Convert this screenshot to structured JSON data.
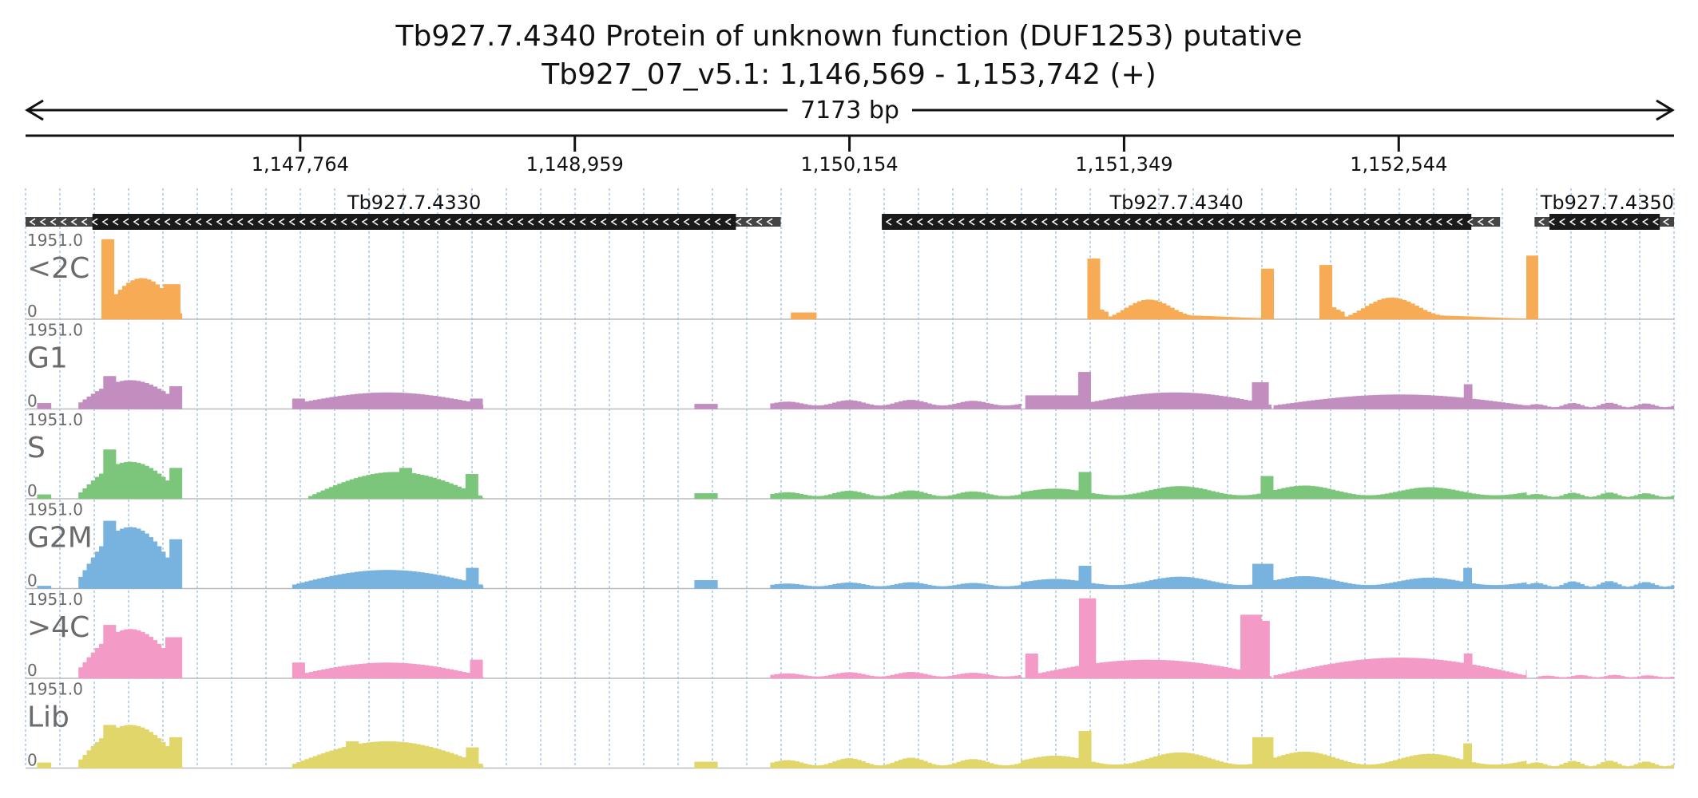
{
  "header": {
    "title": "Tb927.7.4340  Protein of unknown function (DUF1253)  putative",
    "location": "Tb927_07_v5.1: 1,146,569 - 1,153,742 (+)"
  },
  "chart_data": {
    "type": "area",
    "region": {
      "chromosome": "Tb927_07_v5.1",
      "start": 1146569,
      "end": 1153742,
      "span_label": "7173 bp"
    },
    "ruler_ticks": [
      {
        "pos": 1147764,
        "label": "1,147,764"
      },
      {
        "pos": 1148959,
        "label": "1,148,959"
      },
      {
        "pos": 1150154,
        "label": "1,150,154"
      },
      {
        "pos": 1151349,
        "label": "1,151,349"
      },
      {
        "pos": 1152544,
        "label": "1,152,544"
      }
    ],
    "genes": [
      {
        "name": "Tb927.7.4330",
        "strand": "-",
        "utr_start": 1146569,
        "start": 1146860,
        "end": 1149660,
        "utr_end": 1149855
      },
      {
        "name": "Tb927.7.4340",
        "strand": "-",
        "utr_start": 1150295,
        "start": 1150295,
        "end": 1152860,
        "utr_end": 1152985
      },
      {
        "name": "Tb927.7.4350",
        "strand": "-",
        "utr_start": 1153135,
        "start": 1153200,
        "end": 1153680,
        "utr_end": 1153742,
        "label_align": "right"
      }
    ],
    "y_max_label": "1951.0",
    "y_min_label": "0",
    "ylim": [
      0,
      1951
    ],
    "tracks": [
      {
        "name": "<2C",
        "color": "#f7ab55",
        "segments": [
          {
            "start": 1146900,
            "end": 1147250,
            "shape": "hump",
            "peak": 1000,
            "base": 150,
            "spikes": [
              [
                1146905,
                1146960,
                1951
              ],
              [
                1147170,
                1147250,
                850
              ]
            ]
          },
          {
            "start": 1149900,
            "end": 1150010,
            "shape": "flat",
            "peak": 160
          },
          {
            "start": 1151190,
            "end": 1152000,
            "shape": "saddle",
            "peak": 500,
            "base": 20,
            "spikes": [
              [
                1151190,
                1151245,
                1480
              ],
              [
                1151950,
                1152000,
                1230
              ]
            ]
          },
          {
            "start": 1152200,
            "end": 1153150,
            "shape": "saddle",
            "peak": 550,
            "base": 10,
            "spikes": [
              [
                1152200,
                1152250,
                1320
              ],
              [
                1153100,
                1153150,
                1550
              ]
            ]
          }
        ]
      },
      {
        "name": "G1",
        "color": "#c28ec0",
        "segments": [
          {
            "start": 1146620,
            "end": 1146680,
            "shape": "flat",
            "peak": 140
          },
          {
            "start": 1146800,
            "end": 1147250,
            "shape": "hump",
            "peak": 700,
            "base": 120,
            "spikes": [
              [
                1146910,
                1146960,
                800
              ],
              [
                1147200,
                1147250,
                550
              ]
            ]
          },
          {
            "start": 1147730,
            "end": 1148560,
            "shape": "hump",
            "peak": 400,
            "base": 110,
            "spikes": [
              [
                1147730,
                1147780,
                250
              ],
              [
                1148510,
                1148560,
                250
              ]
            ]
          },
          {
            "start": 1149480,
            "end": 1149580,
            "shape": "flat",
            "peak": 120
          },
          {
            "start": 1149810,
            "end": 1150900,
            "shape": "wavy",
            "peak": 220,
            "base": 80
          },
          {
            "start": 1150920,
            "end": 1151150,
            "shape": "flat",
            "peak": 330
          },
          {
            "start": 1151150,
            "end": 1151990,
            "shape": "hump",
            "peak": 400,
            "base": 100,
            "spikes": [
              [
                1151150,
                1151200,
                900
              ],
              [
                1151900,
                1151980,
                650
              ]
            ]
          },
          {
            "start": 1152000,
            "end": 1153100,
            "shape": "hump",
            "peak": 350,
            "base": 80,
            "spikes": [
              [
                1152820,
                1152870,
                600
              ]
            ]
          },
          {
            "start": 1153100,
            "end": 1153742,
            "shape": "wavy",
            "peak": 150,
            "base": 40
          }
        ]
      },
      {
        "name": "S",
        "color": "#7cc67c",
        "segments": [
          {
            "start": 1146620,
            "end": 1146680,
            "shape": "flat",
            "peak": 100
          },
          {
            "start": 1146800,
            "end": 1147250,
            "shape": "hump",
            "peak": 900,
            "base": 100,
            "spikes": [
              [
                1146910,
                1146960,
                1200
              ],
              [
                1147200,
                1147250,
                750
              ]
            ]
          },
          {
            "start": 1147800,
            "end": 1148560,
            "shape": "hump",
            "peak": 650,
            "base": 40,
            "spikes": [
              [
                1148200,
                1148250,
                750
              ],
              [
                1148490,
                1148540,
                600
              ]
            ]
          },
          {
            "start": 1149480,
            "end": 1149580,
            "shape": "flat",
            "peak": 130
          },
          {
            "start": 1149810,
            "end": 1150900,
            "shape": "wavy",
            "peak": 200,
            "base": 60
          },
          {
            "start": 1150900,
            "end": 1153100,
            "shape": "wavy",
            "peak": 320,
            "base": 80,
            "spikes": [
              [
                1151150,
                1151200,
                650
              ],
              [
                1151950,
                1151990,
                550
              ]
            ]
          },
          {
            "start": 1153100,
            "end": 1153742,
            "shape": "wavy",
            "peak": 150,
            "base": 40
          }
        ]
      },
      {
        "name": "G2M",
        "color": "#78b3e0",
        "segments": [
          {
            "start": 1146620,
            "end": 1146680,
            "shape": "flat",
            "peak": 60
          },
          {
            "start": 1146800,
            "end": 1147250,
            "shape": "hump",
            "peak": 1500,
            "base": 200,
            "spikes": [
              [
                1146910,
                1146960,
                1650
              ],
              [
                1147200,
                1147250,
                1200
              ]
            ]
          },
          {
            "start": 1147730,
            "end": 1148560,
            "shape": "hump",
            "peak": 450,
            "base": 80,
            "spikes": [
              [
                1148480,
                1148540,
                500
              ]
            ]
          },
          {
            "start": 1149480,
            "end": 1149580,
            "shape": "flat",
            "peak": 200
          },
          {
            "start": 1149810,
            "end": 1150900,
            "shape": "wavy",
            "peak": 150,
            "base": 50
          },
          {
            "start": 1150900,
            "end": 1153100,
            "shape": "wavy",
            "peak": 300,
            "base": 80,
            "spikes": [
              [
                1151150,
                1151200,
                550
              ],
              [
                1151900,
                1151990,
                600
              ],
              [
                1152820,
                1152870,
                500
              ]
            ]
          },
          {
            "start": 1153100,
            "end": 1153742,
            "shape": "wavy",
            "peak": 180,
            "base": 40
          }
        ]
      },
      {
        "name": ">4C",
        "color": "#f39ac6",
        "segments": [
          {
            "start": 1146800,
            "end": 1147250,
            "shape": "hump",
            "peak": 1200,
            "base": 200,
            "spikes": [
              [
                1146910,
                1146960,
                1300
              ],
              [
                1147170,
                1147250,
                1000
              ]
            ]
          },
          {
            "start": 1147730,
            "end": 1148560,
            "shape": "hump",
            "peak": 380,
            "base": 50,
            "spikes": [
              [
                1147730,
                1147780,
                380
              ],
              [
                1148510,
                1148560,
                450
              ]
            ]
          },
          {
            "start": 1149810,
            "end": 1150900,
            "shape": "wavy",
            "peak": 150,
            "base": 40
          },
          {
            "start": 1150920,
            "end": 1151990,
            "shape": "hump",
            "peak": 450,
            "base": 50,
            "spikes": [
              [
                1150920,
                1150970,
                600
              ],
              [
                1151160,
                1151220,
                1951
              ],
              [
                1151860,
                1151940,
                1550
              ],
              [
                1151940,
                1151990,
                1400
              ]
            ]
          },
          {
            "start": 1152000,
            "end": 1153100,
            "shape": "hump",
            "peak": 500,
            "base": 60,
            "spikes": [
              [
                1152820,
                1152870,
                600
              ],
              [
                1153100,
                1153150,
                200
              ]
            ]
          },
          {
            "start": 1153150,
            "end": 1153742,
            "shape": "wavy",
            "peak": 80,
            "base": 20
          }
        ]
      },
      {
        "name": "Lib",
        "color": "#e0d66a",
        "segments": [
          {
            "start": 1146620,
            "end": 1146680,
            "shape": "flat",
            "peak": 130
          },
          {
            "start": 1146800,
            "end": 1147250,
            "shape": "hump",
            "peak": 1050,
            "base": 150,
            "spikes": [
              [
                1146910,
                1146960,
                1050
              ],
              [
                1147200,
                1147250,
                750
              ]
            ]
          },
          {
            "start": 1147730,
            "end": 1148560,
            "shape": "hump",
            "peak": 650,
            "base": 80,
            "spikes": [
              [
                1147960,
                1148010,
                650
              ],
              [
                1148490,
                1148540,
                500
              ]
            ]
          },
          {
            "start": 1149480,
            "end": 1149580,
            "shape": "flat",
            "peak": 150
          },
          {
            "start": 1149810,
            "end": 1150900,
            "shape": "wavy",
            "peak": 250,
            "base": 60
          },
          {
            "start": 1150900,
            "end": 1153100,
            "shape": "wavy",
            "peak": 400,
            "base": 80,
            "spikes": [
              [
                1151150,
                1151200,
                900
              ],
              [
                1151900,
                1151990,
                750
              ],
              [
                1152820,
                1152870,
                600
              ]
            ]
          },
          {
            "start": 1153100,
            "end": 1153742,
            "shape": "wavy",
            "peak": 180,
            "base": 40
          }
        ]
      }
    ]
  }
}
